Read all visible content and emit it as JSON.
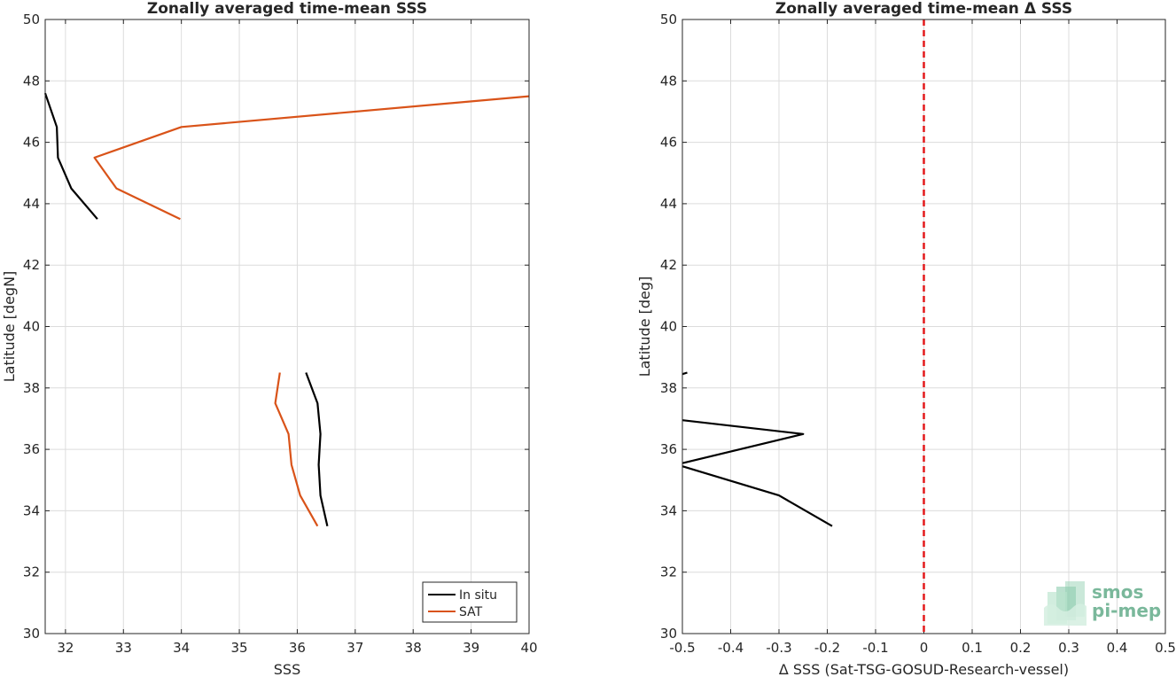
{
  "chart_data": [
    {
      "type": "line",
      "title": "Zonally averaged time-mean SSS",
      "xlabel": "SSS",
      "ylabel": "Latitude [degN]",
      "xlim": [
        31.65,
        40
      ],
      "ylim": [
        30,
        50
      ],
      "xticks": [
        32,
        33,
        34,
        35,
        36,
        37,
        38,
        39,
        40
      ],
      "yticks": [
        30,
        32,
        34,
        36,
        38,
        40,
        42,
        44,
        46,
        48,
        50
      ],
      "grid": true,
      "legend_position": "bottom-right",
      "series": [
        {
          "name": "In situ",
          "color": "#000000",
          "segments": [
            [
              [
                31.65,
                47.6
              ],
              [
                31.85,
                46.5
              ],
              [
                31.87,
                45.5
              ],
              [
                32.1,
                44.5
              ],
              [
                32.55,
                43.5
              ]
            ],
            [
              [
                36.15,
                38.5
              ],
              [
                36.35,
                37.5
              ],
              [
                36.4,
                36.5
              ],
              [
                36.37,
                35.5
              ],
              [
                36.4,
                34.5
              ],
              [
                36.52,
                33.5
              ]
            ]
          ]
        },
        {
          "name": "SAT",
          "color": "#d95319",
          "segments": [
            [
              [
                40.0,
                47.5
              ],
              [
                34.0,
                46.5
              ],
              [
                32.5,
                45.5
              ],
              [
                32.88,
                44.5
              ],
              [
                33.98,
                43.5
              ]
            ],
            [
              [
                35.7,
                38.5
              ],
              [
                35.62,
                37.5
              ],
              [
                35.85,
                36.5
              ],
              [
                35.9,
                35.5
              ],
              [
                36.05,
                34.5
              ],
              [
                36.35,
                33.5
              ]
            ]
          ]
        }
      ]
    },
    {
      "type": "line",
      "title": "Zonally averaged time-mean Δ SSS",
      "xlabel": "Δ SSS (Sat-TSG-GOSUD-Research-vessel)",
      "ylabel": "Latitude [deg]",
      "xlim": [
        -0.5,
        0.5
      ],
      "ylim": [
        30,
        50
      ],
      "xticks": [
        -0.5,
        -0.4,
        -0.3,
        -0.2,
        -0.1,
        0,
        0.1,
        0.2,
        0.3,
        0.4,
        0.5
      ],
      "yticks": [
        30,
        32,
        34,
        36,
        38,
        40,
        42,
        44,
        46,
        48,
        50
      ],
      "grid": true,
      "reference_line": {
        "x": 0,
        "color": "#e31a1c",
        "style": "dashed"
      },
      "series": [
        {
          "color": "#000000",
          "segments": [
            [
              [
                -0.5,
                38.45
              ],
              [
                -0.49,
                38.5
              ]
            ],
            [
              [
                -0.5,
                36.95
              ],
              [
                -0.25,
                36.5
              ],
              [
                -0.5,
                35.55
              ]
            ],
            [
              [
                -0.5,
                35.45
              ],
              [
                -0.3,
                34.5
              ],
              [
                -0.19,
                33.5
              ]
            ]
          ]
        }
      ]
    }
  ],
  "logo": {
    "line1": "smos",
    "line2": "pi-mep"
  }
}
